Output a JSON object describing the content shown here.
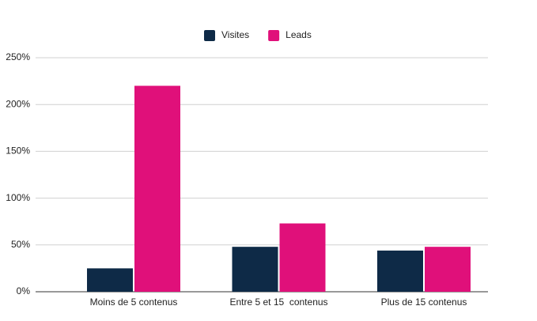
{
  "chart_data": {
    "type": "bar",
    "categories": [
      "Moins de 5 contenus",
      "Entre 5 et 15  contenus",
      "Plus de 15 contenus"
    ],
    "series": [
      {
        "name": "Visites",
        "color": "#0e2a47",
        "values": [
          25,
          48,
          44
        ]
      },
      {
        "name": "Leads",
        "color": "#e0107a",
        "values": [
          220,
          73,
          48
        ]
      }
    ],
    "ylim": [
      0,
      250
    ],
    "yticks": [
      {
        "value": 0,
        "label": "0%"
      },
      {
        "value": 50,
        "label": "50%"
      },
      {
        "value": 100,
        "label": "100%"
      },
      {
        "value": 150,
        "label": "150%"
      },
      {
        "value": 200,
        "label": "200%"
      },
      {
        "value": 250,
        "label": "250%"
      }
    ],
    "grid": true,
    "legend": "top"
  }
}
